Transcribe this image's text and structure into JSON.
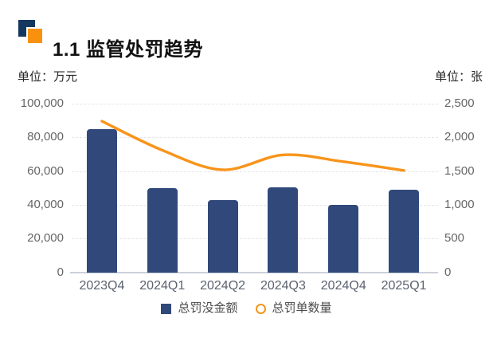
{
  "title": {
    "text": "1.1 监管处罚趋势",
    "icon_navy_color": "#14375f",
    "icon_orange_color": "#f8920e"
  },
  "units": {
    "left": "单位：万元",
    "right": "单位：张"
  },
  "chart_data": {
    "type": "bar+line combo, dual y-axes",
    "categories": [
      "2023Q4",
      "2024Q1",
      "2024Q2",
      "2024Q3",
      "2024Q4",
      "2025Q1"
    ],
    "series": [
      {
        "name": "总罚没金额",
        "type": "bar",
        "axis": "left",
        "unit": "万元",
        "color": "#31497a",
        "values": [
          85000,
          50000,
          43000,
          50500,
          40000,
          49000
        ]
      },
      {
        "name": "总罚单数量",
        "type": "line",
        "axis": "right",
        "unit": "张",
        "color": "#f8941a",
        "smooth": true,
        "values": [
          2240,
          1810,
          1520,
          1740,
          1640,
          1510
        ]
      }
    ],
    "left_axis": {
      "min": 0,
      "max": 100000,
      "step": 20000,
      "tick_labels": [
        "0",
        "20,000",
        "40,000",
        "60,000",
        "80,000",
        "100,000"
      ]
    },
    "right_axis": {
      "min": 0,
      "max": 2500,
      "step": 500,
      "tick_labels": [
        "0",
        "500",
        "1,000",
        "1,500",
        "2,000",
        "2,500"
      ]
    },
    "grid": "horizontal dashed gridlines",
    "legend_position": "bottom",
    "xlabel": "",
    "ylabel_left": "万元",
    "ylabel_right": "张"
  }
}
